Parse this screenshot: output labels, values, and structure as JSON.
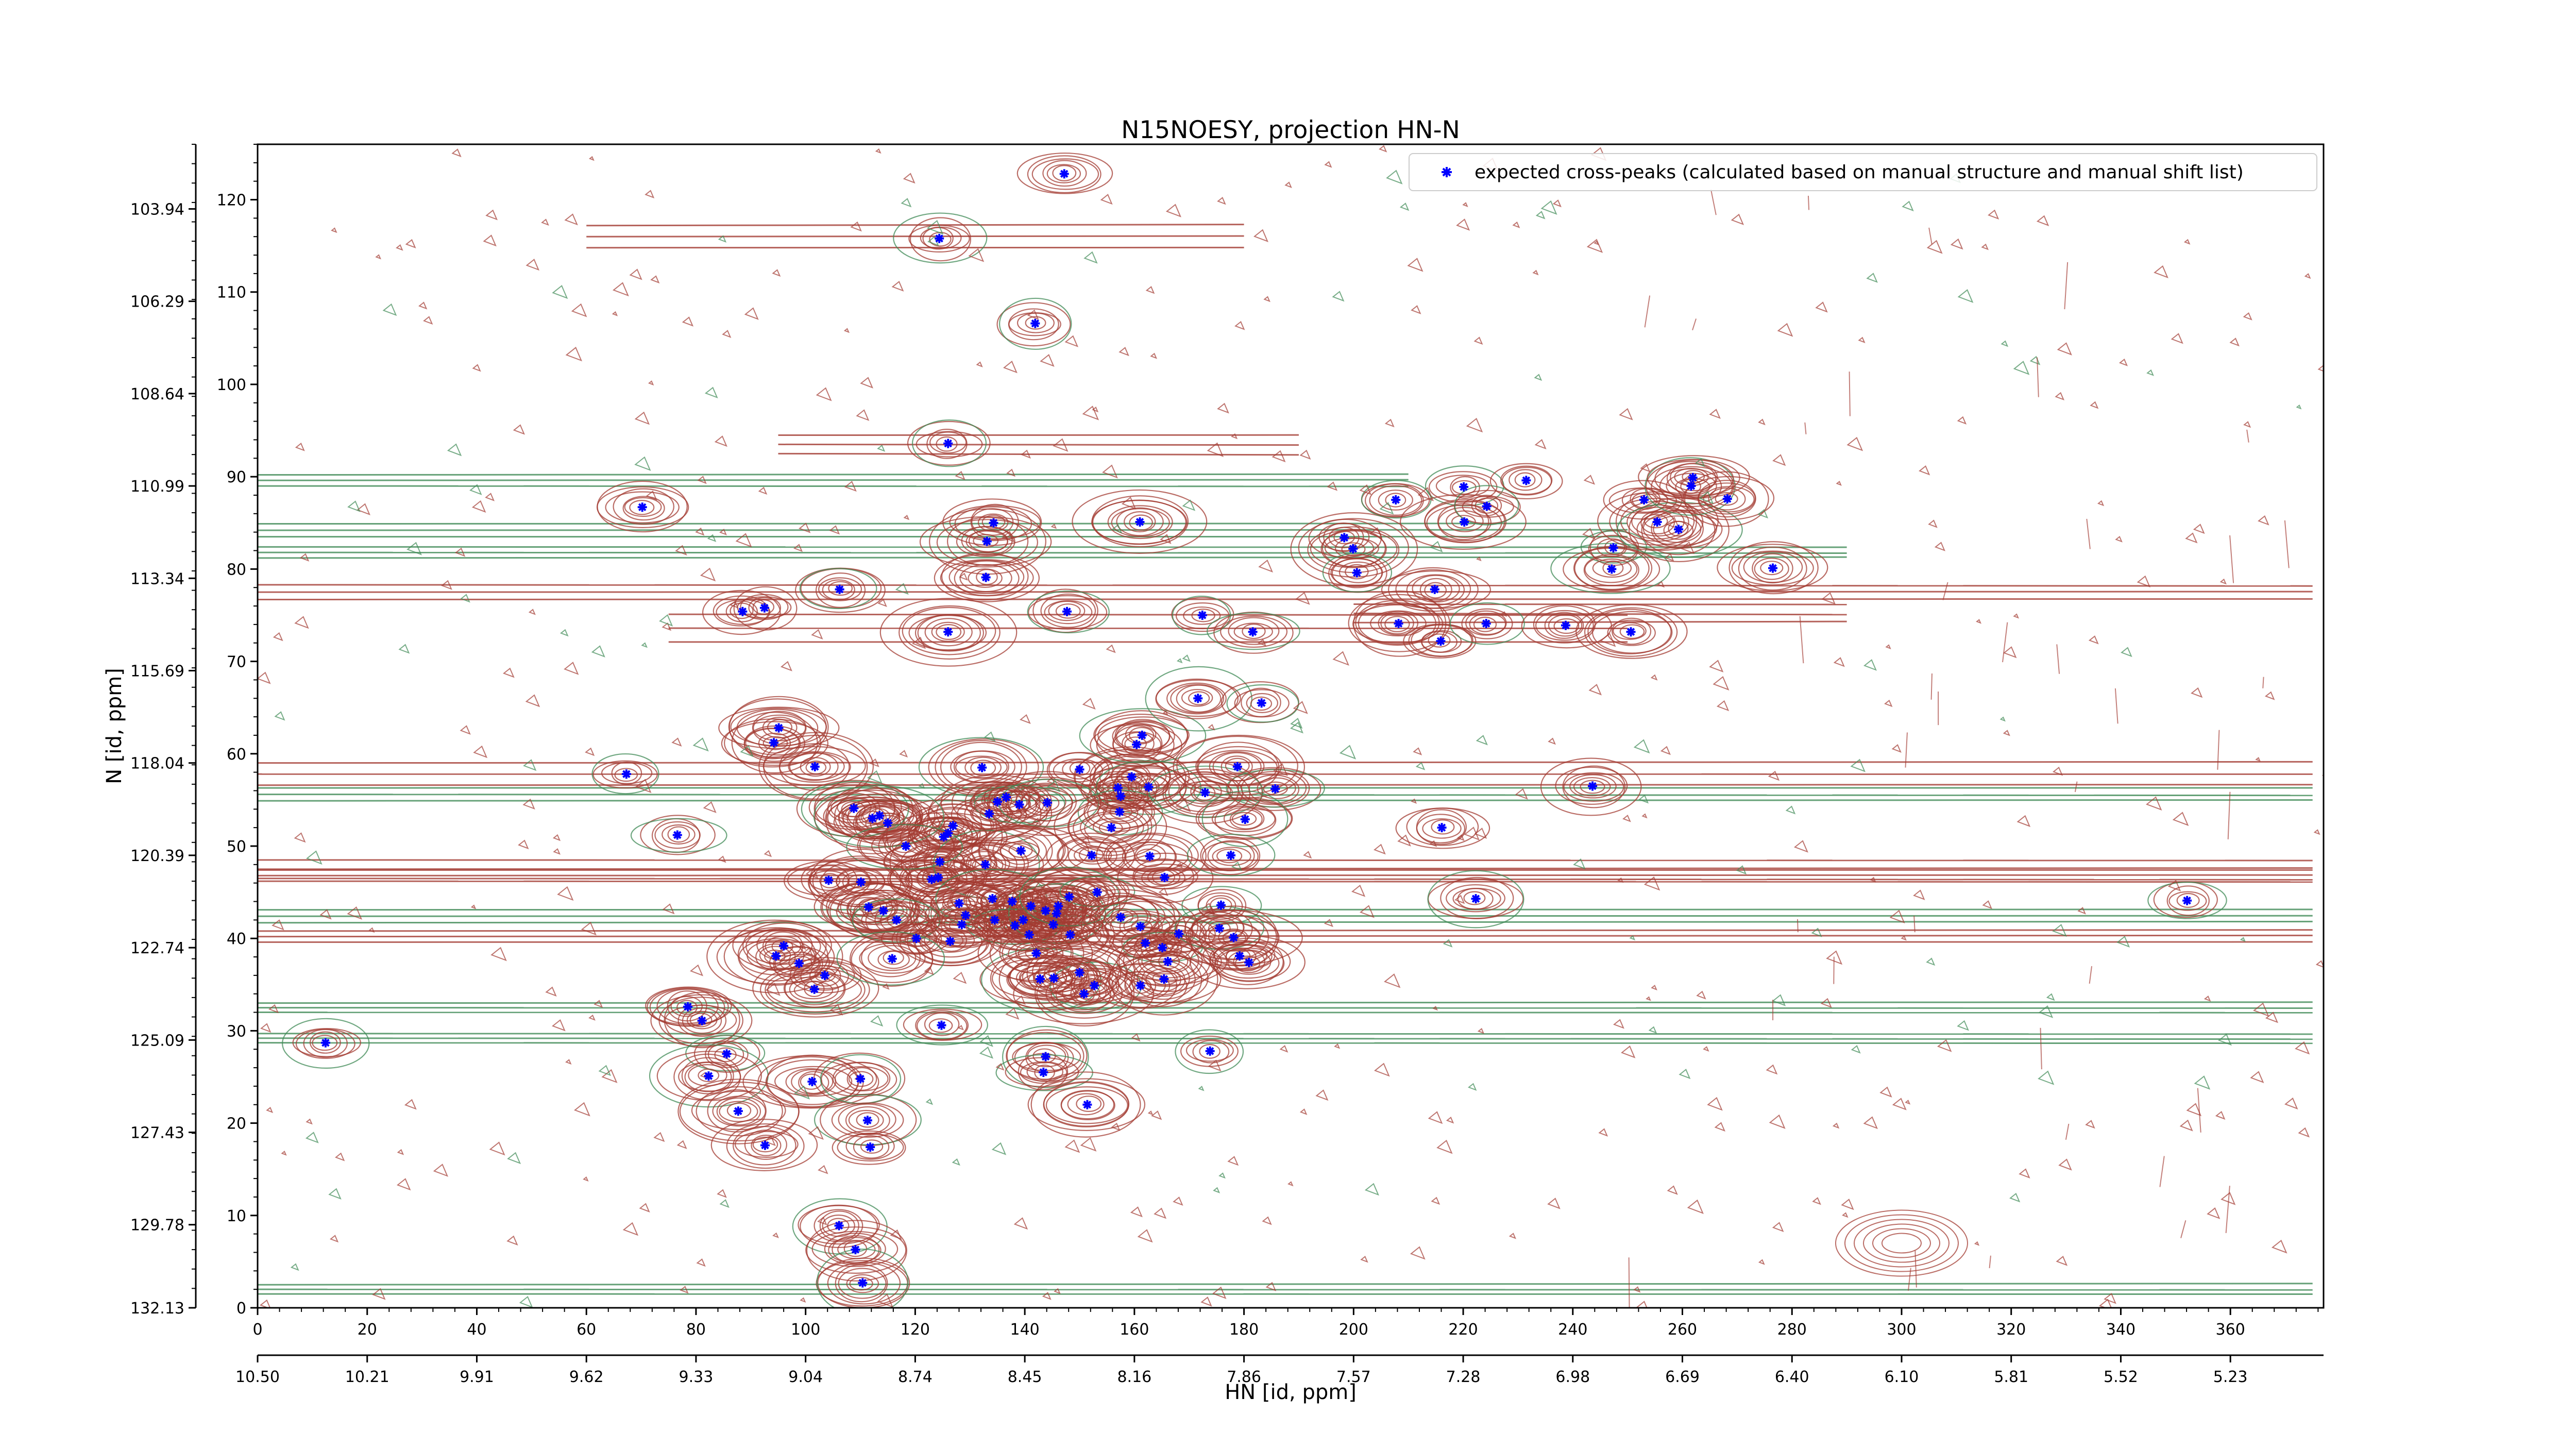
{
  "chart_data": {
    "type": "scatter",
    "title": "N15NOESY, projection HN-N",
    "xlabel": "HN [id, ppm]",
    "ylabel": "N [id, ppm]",
    "xlim": [
      0,
      377
    ],
    "ylim": [
      0,
      126
    ],
    "x_ticks": [
      0,
      20,
      40,
      60,
      80,
      100,
      120,
      140,
      160,
      180,
      200,
      220,
      240,
      260,
      280,
      300,
      320,
      340,
      360
    ],
    "y_ticks": [
      0,
      10,
      20,
      30,
      40,
      50,
      60,
      70,
      80,
      90,
      100,
      110,
      120
    ],
    "x_ppm_ticks": [
      {
        "pos": 0,
        "label": "10.50"
      },
      {
        "pos": 20,
        "label": "10.21"
      },
      {
        "pos": 40,
        "label": "9.91"
      },
      {
        "pos": 60,
        "label": "9.62"
      },
      {
        "pos": 80,
        "label": "9.33"
      },
      {
        "pos": 100,
        "label": "9.04"
      },
      {
        "pos": 120,
        "label": "8.74"
      },
      {
        "pos": 140,
        "label": "8.45"
      },
      {
        "pos": 160,
        "label": "8.16"
      },
      {
        "pos": 180,
        "label": "7.86"
      },
      {
        "pos": 200,
        "label": "7.57"
      },
      {
        "pos": 220,
        "label": "7.28"
      },
      {
        "pos": 240,
        "label": "6.98"
      },
      {
        "pos": 260,
        "label": "6.69"
      },
      {
        "pos": 280,
        "label": "6.40"
      },
      {
        "pos": 300,
        "label": "6.10"
      },
      {
        "pos": 320,
        "label": "5.81"
      },
      {
        "pos": 340,
        "label": "5.52"
      },
      {
        "pos": 360,
        "label": "5.23"
      }
    ],
    "y_ppm_ticks": [
      {
        "pos": 119,
        "label": "103.94"
      },
      {
        "pos": 109,
        "label": "106.29"
      },
      {
        "pos": 99,
        "label": "108.64"
      },
      {
        "pos": 89,
        "label": "110.99"
      },
      {
        "pos": 79,
        "label": "113.34"
      },
      {
        "pos": 69,
        "label": "115.69"
      },
      {
        "pos": 59,
        "label": "118.04"
      },
      {
        "pos": 49,
        "label": "120.39"
      },
      {
        "pos": 39,
        "label": "122.74"
      },
      {
        "pos": 29,
        "label": "125.09"
      },
      {
        "pos": 19,
        "label": "127.43"
      },
      {
        "pos": 9,
        "label": "129.78"
      },
      {
        "pos": 0,
        "label": "132.13"
      }
    ],
    "legend": {
      "placement": "top-right",
      "label": "expected cross-peaks (calculated based on manual structure and manual shift list)"
    },
    "series": [
      {
        "name": "expected cross-peaks (calculated based on manual structure and manual shift list)",
        "color": "#0000ff",
        "points": [
          [
            147.2,
            122.8
          ],
          [
            124.4,
            115.8
          ],
          [
            141.9,
            106.6
          ],
          [
            126.0,
            93.6
          ],
          [
            70.2,
            86.7
          ],
          [
            106.2,
            77.8
          ],
          [
            88.5,
            75.4
          ],
          [
            92.5,
            75.8
          ],
          [
            126.0,
            73.2
          ],
          [
            147.7,
            75.4
          ],
          [
            172.4,
            75.0
          ],
          [
            181.6,
            73.2
          ],
          [
            133.1,
            83.0
          ],
          [
            134.3,
            85.0
          ],
          [
            132.9,
            79.1
          ],
          [
            161.0,
            85.1
          ],
          [
            198.3,
            83.4
          ],
          [
            199.9,
            82.2
          ],
          [
            200.6,
            79.6
          ],
          [
            207.7,
            87.5
          ],
          [
            220.1,
            88.9
          ],
          [
            220.2,
            85.1
          ],
          [
            224.3,
            86.8
          ],
          [
            231.5,
            89.6
          ],
          [
            214.8,
            77.8
          ],
          [
            208.2,
            74.1
          ],
          [
            215.9,
            72.2
          ],
          [
            224.2,
            74.1
          ],
          [
            238.7,
            73.9
          ],
          [
            250.6,
            73.2
          ],
          [
            247.4,
            82.3
          ],
          [
            247.1,
            80.0
          ],
          [
            253.0,
            87.5
          ],
          [
            255.4,
            85.1
          ],
          [
            259.3,
            84.3
          ],
          [
            261.6,
            89.0
          ],
          [
            261.9,
            89.9
          ],
          [
            268.2,
            87.6
          ],
          [
            276.5,
            80.1
          ],
          [
            157.0,
            56.3
          ],
          [
            185.7,
            56.2
          ],
          [
            216.1,
            52.0
          ],
          [
            243.6,
            56.5
          ],
          [
            150.0,
            58.3
          ],
          [
            159.5,
            57.5
          ],
          [
            160.4,
            61.0
          ],
          [
            161.4,
            62.0
          ],
          [
            171.6,
            66.0
          ],
          [
            183.2,
            65.5
          ],
          [
            132.2,
            58.5
          ],
          [
            135.0,
            54.8
          ],
          [
            133.5,
            53.5
          ],
          [
            136.6,
            55.3
          ],
          [
            139.0,
            54.5
          ],
          [
            144.1,
            54.7
          ],
          [
            95.1,
            62.8
          ],
          [
            94.2,
            61.2
          ],
          [
            101.7,
            58.6
          ],
          [
            162.6,
            56.4
          ],
          [
            157.5,
            55.4
          ],
          [
            157.3,
            53.7
          ],
          [
            155.8,
            52.0
          ],
          [
            172.9,
            55.8
          ],
          [
            178.8,
            58.6
          ],
          [
            180.2,
            52.9
          ],
          [
            115.0,
            52.5
          ],
          [
            126.9,
            52.2
          ],
          [
            126.0,
            51.4
          ],
          [
            125.2,
            51.0
          ],
          [
            124.5,
            48.3
          ],
          [
            124.2,
            46.6
          ],
          [
            123.0,
            46.4
          ],
          [
            132.8,
            48.0
          ],
          [
            139.3,
            49.5
          ],
          [
            152.2,
            49.0
          ],
          [
            112.2,
            53.0
          ],
          [
            108.8,
            54.1
          ],
          [
            113.5,
            53.3
          ],
          [
            118.3,
            50.0
          ],
          [
            128.0,
            43.8
          ],
          [
            129.2,
            42.5
          ],
          [
            134.1,
            44.3
          ],
          [
            134.5,
            42.0
          ],
          [
            137.7,
            44.0
          ],
          [
            141.1,
            43.5
          ],
          [
            139.7,
            42.0
          ],
          [
            143.8,
            43.0
          ],
          [
            146.1,
            43.5
          ],
          [
            140.8,
            40.4
          ],
          [
            138.2,
            41.4
          ],
          [
            145.8,
            42.7
          ],
          [
            145.2,
            41.5
          ],
          [
            148.3,
            40.4
          ],
          [
            148.1,
            44.5
          ],
          [
            153.2,
            45.0
          ],
          [
            157.5,
            42.3
          ],
          [
            161.1,
            41.3
          ],
          [
            162.0,
            39.5
          ],
          [
            165.1,
            39.0
          ],
          [
            168.1,
            40.5
          ],
          [
            166.1,
            37.5
          ],
          [
            175.8,
            43.6
          ],
          [
            175.5,
            41.1
          ],
          [
            180.9,
            37.4
          ],
          [
            165.5,
            46.6
          ],
          [
            162.8,
            48.9
          ],
          [
            177.6,
            49.0
          ],
          [
            222.3,
            44.3
          ],
          [
            352.1,
            44.1
          ],
          [
            104.2,
            46.3
          ],
          [
            110.1,
            46.1
          ],
          [
            111.5,
            43.4
          ],
          [
            114.2,
            43.0
          ],
          [
            116.6,
            42.0
          ],
          [
            120.2,
            40.0
          ],
          [
            126.4,
            39.7
          ],
          [
            128.5,
            41.5
          ],
          [
            94.6,
            38.1
          ],
          [
            98.8,
            37.3
          ],
          [
            96.0,
            39.2
          ],
          [
            103.5,
            36.0
          ],
          [
            101.6,
            34.5
          ],
          [
            115.8,
            37.8
          ],
          [
            142.8,
            35.6
          ],
          [
            145.3,
            35.7
          ],
          [
            152.7,
            34.9
          ],
          [
            150.8,
            34.0
          ],
          [
            161.1,
            34.9
          ],
          [
            165.4,
            35.6
          ],
          [
            67.3,
            57.8
          ],
          [
            76.6,
            51.2
          ],
          [
            78.5,
            32.6
          ],
          [
            81.1,
            31.1
          ],
          [
            85.6,
            27.5
          ],
          [
            82.3,
            25.1
          ],
          [
            87.7,
            21.3
          ],
          [
            92.6,
            17.6
          ],
          [
            101.2,
            24.5
          ],
          [
            110.0,
            24.8
          ],
          [
            111.3,
            20.3
          ],
          [
            111.8,
            17.4
          ],
          [
            106.1,
            8.9
          ],
          [
            109.1,
            6.3
          ],
          [
            110.4,
            2.7
          ],
          [
            124.8,
            30.6
          ],
          [
            143.8,
            27.2
          ],
          [
            143.4,
            25.5
          ],
          [
            151.4,
            22.0
          ],
          [
            173.8,
            27.8
          ],
          [
            12.4,
            28.7
          ],
          [
            179.2,
            38.1
          ],
          [
            178.1,
            40.1
          ],
          [
            142.1,
            38.4
          ],
          [
            150.0,
            36.3
          ]
        ]
      }
    ]
  }
}
